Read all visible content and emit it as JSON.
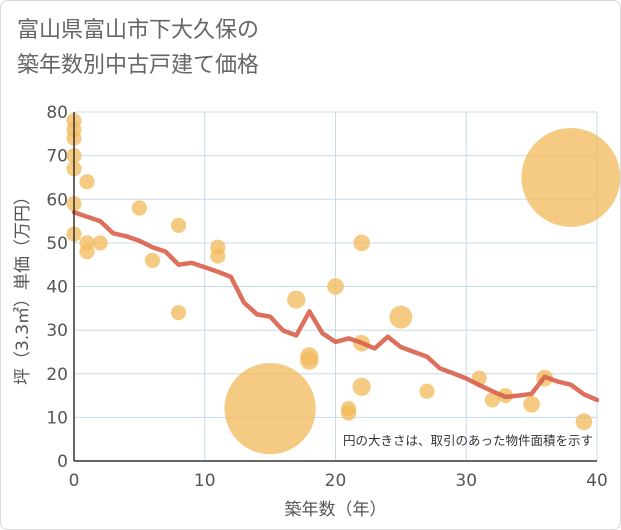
{
  "title_lines": [
    "富山県富山市下大久保の",
    "築年数別中古戸建て価格"
  ],
  "chart_data": {
    "type": "scatter",
    "title": "富山県富山市下大久保の築年数別中古戸建て価格",
    "xlabel": "築年数（年）",
    "ylabel": "坪（3.3㎡）単価（万円）",
    "xlim": [
      0,
      40
    ],
    "ylim": [
      0,
      80
    ],
    "xticks": [
      0,
      10,
      20,
      30,
      40
    ],
    "yticks": [
      0,
      10,
      20,
      30,
      40,
      50,
      60,
      70,
      80
    ],
    "grid": true,
    "note": "円の大きさは、取引のあった物件面積を示す",
    "colors": {
      "bubble": "#f2b95a",
      "line": "#d9604a",
      "grid": "#c9d9ea",
      "axis": "#333333",
      "text": "#555555"
    },
    "points": [
      {
        "x": 0,
        "y": 78,
        "size": 1
      },
      {
        "x": 0,
        "y": 76,
        "size": 1
      },
      {
        "x": 0,
        "y": 74,
        "size": 1
      },
      {
        "x": 0,
        "y": 70,
        "size": 1
      },
      {
        "x": 0,
        "y": 67,
        "size": 1
      },
      {
        "x": 0,
        "y": 59,
        "size": 1
      },
      {
        "x": 0,
        "y": 52,
        "size": 1
      },
      {
        "x": 1,
        "y": 64,
        "size": 1
      },
      {
        "x": 1,
        "y": 50,
        "size": 1
      },
      {
        "x": 1,
        "y": 48,
        "size": 1
      },
      {
        "x": 2,
        "y": 50,
        "size": 1
      },
      {
        "x": 5,
        "y": 58,
        "size": 1
      },
      {
        "x": 6,
        "y": 46,
        "size": 1
      },
      {
        "x": 8,
        "y": 54,
        "size": 1
      },
      {
        "x": 8,
        "y": 34,
        "size": 1
      },
      {
        "x": 11,
        "y": 49,
        "size": 1
      },
      {
        "x": 11,
        "y": 47,
        "size": 1
      },
      {
        "x": 15,
        "y": 12,
        "size": 6
      },
      {
        "x": 17,
        "y": 37,
        "size": 1.2
      },
      {
        "x": 18,
        "y": 24,
        "size": 1.2
      },
      {
        "x": 18,
        "y": 23,
        "size": 1.2
      },
      {
        "x": 20,
        "y": 40,
        "size": 1.1
      },
      {
        "x": 21,
        "y": 12,
        "size": 1
      },
      {
        "x": 21,
        "y": 11,
        "size": 1
      },
      {
        "x": 22,
        "y": 50,
        "size": 1.1
      },
      {
        "x": 22,
        "y": 27,
        "size": 1.1
      },
      {
        "x": 22,
        "y": 17,
        "size": 1.2
      },
      {
        "x": 25,
        "y": 33,
        "size": 1.5
      },
      {
        "x": 27,
        "y": 16,
        "size": 1
      },
      {
        "x": 31,
        "y": 19,
        "size": 1
      },
      {
        "x": 32,
        "y": 14,
        "size": 1
      },
      {
        "x": 33,
        "y": 15,
        "size": 1
      },
      {
        "x": 35,
        "y": 13,
        "size": 1.1
      },
      {
        "x": 36,
        "y": 19,
        "size": 1.1
      },
      {
        "x": 38,
        "y": 65,
        "size": 6.5
      },
      {
        "x": 39,
        "y": 9,
        "size": 1.1
      }
    ],
    "trend": {
      "x": [
        0,
        1,
        2,
        3,
        4,
        5,
        6,
        7,
        8,
        9,
        10,
        11,
        12,
        13,
        14,
        15,
        16,
        17,
        18,
        19,
        20,
        21,
        22,
        23,
        24,
        25,
        26,
        27,
        28,
        29,
        30,
        31,
        32,
        33,
        34,
        35,
        36,
        37,
        38,
        39,
        40
      ],
      "y": [
        57,
        56,
        55,
        52.2,
        51.5,
        50.5,
        49,
        48,
        45,
        45.4,
        44.4,
        43.4,
        42.2,
        36.3,
        33.6,
        33.1,
        29.9,
        28.8,
        34.3,
        29.3,
        27.3,
        28.1,
        27.1,
        25.8,
        28.5,
        26.1,
        25,
        23.9,
        21.2,
        20.1,
        18.9,
        17.4,
        16,
        14.7,
        15,
        15.4,
        19.3,
        18.2,
        17.5,
        15.3,
        14
      ]
    }
  }
}
